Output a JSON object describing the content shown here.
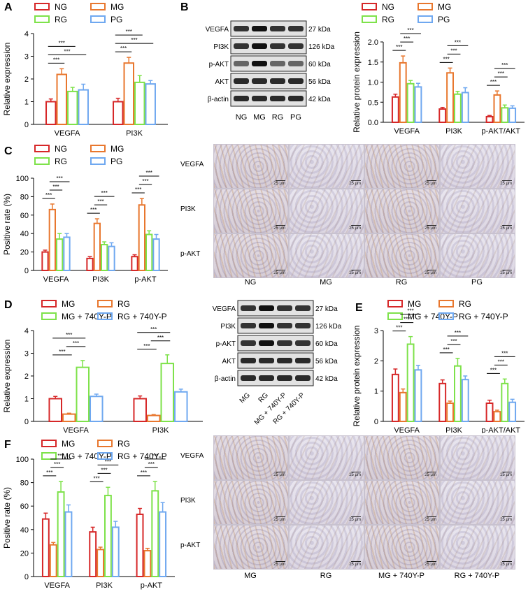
{
  "panels": {
    "A": "A",
    "B": "B",
    "C": "C",
    "D": "D",
    "E": "E",
    "F": "F"
  },
  "colors": {
    "NG": "#d62728",
    "MG": "#e8772e",
    "RG": "#7ee24a",
    "PG": "#6fa8f0",
    "D_MG": "#d62728",
    "D_RG": "#e8772e",
    "D_MG740": "#7ee24a",
    "D_RG740": "#6fa8f0"
  },
  "legend_top": [
    "NG",
    "MG",
    "RG",
    "PG"
  ],
  "legend_bottom": [
    "MG",
    "RG",
    "MG + 740Y-P",
    "RG + 740Y-P"
  ],
  "sig": "***",
  "chart_data": [
    {
      "id": "A",
      "type": "bar",
      "ylabel": "Relative expression",
      "ylim": [
        0,
        4
      ],
      "yticks": [
        "0",
        "1",
        "2",
        "3",
        "4"
      ],
      "categories": [
        "VEGFA",
        "PI3K"
      ],
      "series": [
        {
          "name": "NG",
          "values": [
            1.0,
            1.0
          ],
          "err": [
            0.12,
            0.15
          ]
        },
        {
          "name": "MG",
          "values": [
            2.2,
            2.7
          ],
          "err": [
            0.25,
            0.25
          ]
        },
        {
          "name": "RG",
          "values": [
            1.45,
            1.85
          ],
          "err": [
            0.18,
            0.3
          ]
        },
        {
          "name": "PG",
          "values": [
            1.52,
            1.78
          ],
          "err": [
            0.25,
            0.15
          ]
        }
      ]
    },
    {
      "id": "B",
      "type": "bar",
      "ylabel": "Relative protein expression",
      "ylim": [
        0,
        2.0
      ],
      "yticks": [
        "0.0",
        "0.5",
        "1.0",
        "1.5",
        "2.0"
      ],
      "categories": [
        "VEGFA",
        "PI3K",
        "p-AKT/AKT"
      ],
      "series": [
        {
          "name": "NG",
          "values": [
            0.63,
            0.33,
            0.14
          ],
          "err": [
            0.07,
            0.04,
            0.03
          ]
        },
        {
          "name": "MG",
          "values": [
            1.48,
            1.23,
            0.68
          ],
          "err": [
            0.17,
            0.12,
            0.1
          ]
        },
        {
          "name": "RG",
          "values": [
            0.96,
            0.7,
            0.36
          ],
          "err": [
            0.08,
            0.07,
            0.07
          ]
        },
        {
          "name": "PG",
          "values": [
            0.88,
            0.74,
            0.35
          ],
          "err": [
            0.09,
            0.12,
            0.06
          ]
        }
      ]
    },
    {
      "id": "C",
      "type": "bar",
      "ylabel": "Positive rate (%)",
      "ylim": [
        0,
        100
      ],
      "yticks": [
        "0",
        "20",
        "40",
        "60",
        "80",
        "100"
      ],
      "categories": [
        "VEGFA",
        "PI3K",
        "p-AKT"
      ],
      "series": [
        {
          "name": "NG",
          "values": [
            20,
            13,
            15
          ],
          "err": [
            2,
            2,
            2
          ]
        },
        {
          "name": "MG",
          "values": [
            66,
            51,
            71
          ],
          "err": [
            6,
            5,
            7
          ]
        },
        {
          "name": "RG",
          "values": [
            34,
            28,
            39
          ],
          "err": [
            6,
            3,
            4
          ]
        },
        {
          "name": "PG",
          "values": [
            36,
            26,
            34
          ],
          "err": [
            4,
            4,
            5
          ]
        }
      ]
    },
    {
      "id": "D",
      "type": "bar",
      "ylabel": "Relative expression",
      "ylim": [
        0,
        4
      ],
      "yticks": [
        "0",
        "1",
        "2",
        "3",
        "4"
      ],
      "categories": [
        "VEGFA",
        "PI3K"
      ],
      "series": [
        {
          "name": "MG",
          "values": [
            1.0,
            1.0
          ],
          "err": [
            0.1,
            0.12
          ]
        },
        {
          "name": "RG",
          "values": [
            0.32,
            0.26
          ],
          "err": [
            0.04,
            0.04
          ]
        },
        {
          "name": "MG + 740Y-P",
          "values": [
            2.38,
            2.55
          ],
          "err": [
            0.3,
            0.38
          ]
        },
        {
          "name": "RG + 740Y-P",
          "values": [
            1.1,
            1.3
          ],
          "err": [
            0.1,
            0.12
          ]
        }
      ]
    },
    {
      "id": "E",
      "type": "bar",
      "ylabel": "Relative protein expression",
      "ylim": [
        0,
        3
      ],
      "yticks": [
        "0",
        "1",
        "2",
        "3"
      ],
      "categories": [
        "VEGFA",
        "PI3K",
        "p-AKT/AKT"
      ],
      "series": [
        {
          "name": "MG",
          "values": [
            1.55,
            1.25,
            0.6
          ],
          "err": [
            0.18,
            0.12,
            0.1
          ]
        },
        {
          "name": "RG",
          "values": [
            0.95,
            0.6,
            0.32
          ],
          "err": [
            0.12,
            0.07,
            0.05
          ]
        },
        {
          "name": "MG + 740Y-P",
          "values": [
            2.55,
            1.83,
            1.25
          ],
          "err": [
            0.25,
            0.25,
            0.15
          ]
        },
        {
          "name": "RG + 740Y-P",
          "values": [
            1.7,
            1.38,
            0.63
          ],
          "err": [
            0.15,
            0.12,
            0.1
          ]
        }
      ]
    },
    {
      "id": "F",
      "type": "bar",
      "ylabel": "Positive rate (%)",
      "ylim": [
        0,
        100
      ],
      "yticks": [
        "0",
        "20",
        "40",
        "60",
        "80",
        "100"
      ],
      "categories": [
        "VEGFA",
        "PI3K",
        "p-AKT"
      ],
      "series": [
        {
          "name": "MG",
          "values": [
            49,
            38,
            53
          ],
          "err": [
            5,
            4,
            5
          ]
        },
        {
          "name": "RG",
          "values": [
            27,
            23,
            22
          ],
          "err": [
            2,
            2,
            2
          ]
        },
        {
          "name": "MG + 740Y-P",
          "values": [
            72,
            69,
            73
          ],
          "err": [
            9,
            7,
            8
          ]
        },
        {
          "name": "RG + 740Y-P",
          "values": [
            55,
            42,
            55
          ],
          "err": [
            6,
            5,
            8
          ]
        }
      ]
    }
  ],
  "blot_B": {
    "rows": [
      "VEGFA",
      "PI3K",
      "p-AKT",
      "AKT",
      "β-actin"
    ],
    "kda": [
      "27 kDa",
      "126 kDa",
      "60 kDa",
      "56 kDa",
      "42 kDa"
    ],
    "lanes": [
      "NG",
      "MG",
      "RG",
      "PG"
    ]
  },
  "blot_D": {
    "rows": [
      "VEGFA",
      "PI3K",
      "p-AKT",
      "AKT",
      "β-actin"
    ],
    "kda": [
      "27 kDa",
      "126 kDa",
      "60 kDa",
      "56 kDa",
      "42 kDa"
    ],
    "lanes": [
      "MG",
      "RG",
      "MG + 740Y-P",
      "RG + 740Y-P"
    ]
  },
  "ihc_C": {
    "rows": [
      "VEGFA",
      "PI3K",
      "p-AKT"
    ],
    "cols": [
      "NG",
      "MG",
      "RG",
      "PG"
    ],
    "scale": "25 μm"
  },
  "ihc_F": {
    "rows": [
      "VEGFA",
      "PI3K",
      "p-AKT"
    ],
    "cols": [
      "MG",
      "RG",
      "MG + 740Y-P",
      "RG + 740Y-P"
    ],
    "scale": "25 μm"
  }
}
